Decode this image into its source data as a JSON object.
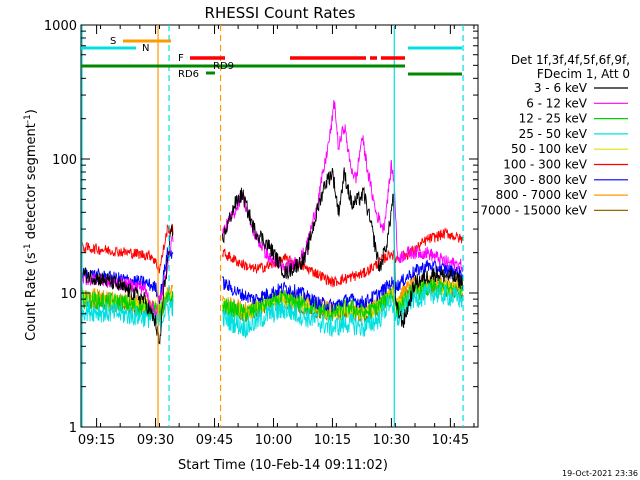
{
  "chart_data": {
    "type": "line",
    "title": "RHESSI Count Rates",
    "xlabel": "Start Time (10-Feb-14 09:11:02)",
    "ylabel_parts": [
      "Count Rate (s",
      "-1",
      " detector segment",
      "-1",
      ")"
    ],
    "y_scale": "log",
    "ylim": [
      1,
      1000
    ],
    "xlim_minutes": [
      0,
      41
    ],
    "x_range": [
      "09:11:02",
      "10:52:02"
    ],
    "y_ticks": [
      {
        "value": 1,
        "label": "1"
      },
      {
        "value": 10,
        "label": "10"
      },
      {
        "value": 100,
        "label": "100"
      },
      {
        "value": 1000,
        "label": "1000"
      }
    ],
    "x_ticks": [
      {
        "label": "09:15",
        "minutes": 3.97
      },
      {
        "label": "09:30",
        "minutes": 18.97
      },
      {
        "label": "09:45",
        "minutes": 33.97
      },
      {
        "label": "10:00",
        "minutes": 48.97
      },
      {
        "label": "10:15",
        "minutes": 63.97
      },
      {
        "label": "10:30",
        "minutes": 78.97
      },
      {
        "label": "10:45",
        "minutes": 93.97
      }
    ],
    "legend_header": [
      "Det 1f,3f,4f,5f,6f,9f,",
      "FDecim 1, Att 0"
    ],
    "series": [
      {
        "name": "3 - 6 keV",
        "color": "#000000"
      },
      {
        "name": "6 - 12 keV",
        "color": "#ff00ff"
      },
      {
        "name": "12 - 25 keV",
        "color": "#00d000"
      },
      {
        "name": "25 - 50 keV",
        "color": "#00e0e0"
      },
      {
        "name": "50 - 100 keV",
        "color": "#e0e000"
      },
      {
        "name": "100 - 300 keV",
        "color": "#ff0000"
      },
      {
        "name": "300 - 800 keV",
        "color": "#0000ff"
      },
      {
        "name": "800 - 7000 keV",
        "color": "#ff9900"
      },
      {
        "name": "7000 - 15000 keV",
        "color": "#996600"
      }
    ],
    "annotations": [
      {
        "label": "S",
        "color": "#ff9900",
        "minutes": [
          24.0,
          36.5
        ]
      },
      {
        "label": "N",
        "color": "#00e0e0",
        "minutes": [
          0.0,
          24.0
        ]
      },
      {
        "label": "F",
        "color": "#ff0000"
      },
      {
        "label": "RD9",
        "color": "#008800"
      },
      {
        "label": "RD6",
        "color": "#008800"
      }
    ],
    "vertical_markers": [
      {
        "minutes": 19.6,
        "color": "#ff9900",
        "style": "solid"
      },
      {
        "minutes": 22.4,
        "color": "#00e0e0",
        "style": "dashed"
      },
      {
        "minutes": 35.5,
        "color": "#ff9900",
        "style": "dashed"
      },
      {
        "minutes": 79.7,
        "color": "#00e0e0",
        "style": "solid"
      },
      {
        "minutes": 97.2,
        "color": "#00e0e0",
        "style": "dashed"
      }
    ],
    "data_gap_minutes": [
      23.5,
      36.0
    ],
    "approx_levels": {
      "3 - 6 keV": "≈30 early, peak ≈55 at 09:45, peaks ≈80 near 10:12–10:17, ≈7 after 10:35",
      "6 - 12 keV": "≈40 at 09:42, peak ≈270 near 10:15, ≈150 near 10:27",
      "100 - 300 keV": "≈20–25 early, ≈12 near 10:05, ≈25 after 10:40",
      "300 - 800 keV": "≈13 early, ≈8 mid, ≈16 late",
      "25 - 50 keV": "≈8 early, ≈5–6 mid, ≈11 late"
    }
  },
  "footer": {
    "timestamp": "19-Oct-2021 23:36"
  }
}
